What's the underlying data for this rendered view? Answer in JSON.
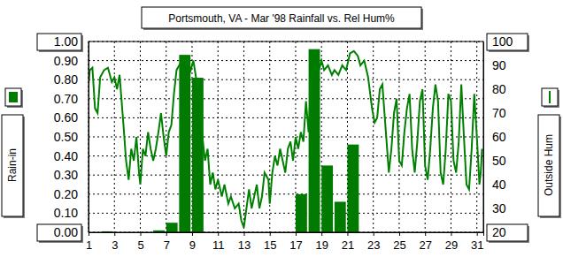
{
  "chart_data": {
    "type": "bar",
    "title": "Portsmouth, VA - Mar '98 Rainfall vs. Rel Hum%",
    "xlim": [
      1,
      31.5
    ],
    "xticks": [
      1,
      3,
      5,
      7,
      9,
      11,
      13,
      15,
      17,
      19,
      21,
      23,
      25,
      27,
      29,
      31
    ],
    "ylim": [
      0,
      1
    ],
    "yticks": [
      {
        "value": 0,
        "label": "0.00"
      },
      {
        "value": 0.1,
        "label": "0.10"
      },
      {
        "value": 0.2,
        "label": "0.20"
      },
      {
        "value": 0.3,
        "label": "0.30"
      },
      {
        "value": 0.4,
        "label": "0.40"
      },
      {
        "value": 0.5,
        "label": "0.50"
      },
      {
        "value": 0.6,
        "label": "0.60"
      },
      {
        "value": 0.7,
        "label": "0.70"
      },
      {
        "value": 0.8,
        "label": "0.80"
      },
      {
        "value": 0.9,
        "label": "0.90"
      },
      {
        "value": 1,
        "label": "1.00"
      }
    ],
    "y2lim": [
      20,
      100
    ],
    "y2ticks": [
      20,
      30,
      40,
      50,
      60,
      70,
      80,
      90,
      100
    ],
    "grid": true,
    "series": [
      {
        "name": "Rain-in",
        "type": "bar",
        "color": "#007a00",
        "x": [
          1,
          2,
          3,
          4,
          5,
          6,
          7,
          8,
          9,
          10,
          11,
          12,
          13,
          14,
          15,
          16,
          17,
          18,
          19,
          20,
          21,
          22,
          23,
          24,
          25,
          26,
          27,
          28,
          29,
          30,
          31
        ],
        "values": [
          0,
          0.005,
          0,
          0,
          0,
          0.01,
          0.05,
          0.93,
          0.81,
          0,
          0,
          0,
          0,
          0,
          0,
          0,
          0.2,
          0.96,
          0.35,
          0.16,
          0.46,
          0,
          0,
          0,
          0,
          0,
          0,
          0,
          0,
          0,
          0
        ]
      },
      {
        "name": "Outside Hum",
        "type": "line",
        "axis": "y2",
        "color": "#008000",
        "x": [
          1.0,
          1.1,
          1.3,
          1.5,
          1.7,
          1.9,
          2.2,
          2.5,
          2.8,
          3.0,
          3.2,
          3.4,
          3.7,
          3.9,
          4.1,
          4.3,
          4.5,
          4.7,
          4.9,
          5.0,
          5.2,
          5.4,
          5.6,
          5.8,
          6.0,
          6.2,
          6.4,
          6.6,
          6.8,
          7.0,
          7.2,
          7.4,
          7.6,
          7.8,
          8.0,
          8.3,
          8.6,
          8.9,
          9.1,
          9.3,
          9.6,
          9.8,
          10.0,
          10.2,
          10.4,
          10.6,
          10.8,
          11.0,
          11.3,
          11.5,
          11.8,
          12.0,
          12.3,
          12.6,
          12.8,
          13.0,
          13.2,
          13.4,
          13.6,
          13.8,
          14.0,
          14.2,
          14.4,
          14.6,
          14.9,
          15.0,
          15.2,
          15.4,
          15.6,
          15.8,
          16.0,
          16.2,
          16.4,
          16.6,
          16.8,
          17.0,
          17.2,
          17.4,
          17.6,
          17.8,
          18.0,
          18.2,
          18.5,
          18.8,
          19.0,
          19.2,
          19.5,
          19.8,
          20.0,
          20.3,
          20.6,
          20.9,
          21.2,
          21.5,
          21.8,
          22.0,
          22.3,
          22.6,
          22.9,
          23.1,
          23.3,
          23.5,
          23.7,
          24.0,
          24.2,
          24.4,
          24.6,
          24.8,
          25.0,
          25.2,
          25.4,
          25.6,
          25.8,
          26.0,
          26.2,
          26.4,
          26.6,
          26.8,
          27.0,
          27.2,
          27.4,
          27.6,
          27.8,
          28.0,
          28.2,
          28.4,
          28.6,
          28.8,
          29.0,
          29.2,
          29.4,
          29.6,
          29.8,
          30.0,
          30.2,
          30.4,
          30.6,
          30.8,
          31.0,
          31.2,
          31.3,
          31.4
        ],
        "values": [
          82,
          88,
          89,
          72,
          70,
          85,
          88,
          89,
          83,
          85,
          80,
          86,
          65,
          50,
          42,
          55,
          50,
          60,
          45,
          40,
          55,
          52,
          62,
          55,
          50,
          55,
          62,
          70,
          60,
          52,
          62,
          65,
          78,
          88,
          90,
          92,
          93,
          88,
          92,
          85,
          75,
          60,
          50,
          55,
          40,
          45,
          38,
          42,
          35,
          40,
          32,
          35,
          30,
          32,
          25,
          22,
          30,
          38,
          30,
          35,
          40,
          30,
          35,
          45,
          42,
          32,
          45,
          52,
          48,
          55,
          50,
          45,
          55,
          58,
          50,
          60,
          55,
          62,
          58,
          75,
          62,
          85,
          90,
          88,
          92,
          88,
          90,
          86,
          88,
          86,
          90,
          88,
          95,
          96,
          94,
          90,
          92,
          85,
          72,
          66,
          68,
          80,
          82,
          60,
          45,
          55,
          70,
          76,
          50,
          48,
          62,
          72,
          78,
          55,
          45,
          58,
          75,
          80,
          48,
          42,
          55,
          72,
          82,
          75,
          45,
          40,
          55,
          78,
          75,
          50,
          45,
          58,
          82,
          60,
          40,
          38,
          55,
          78,
          60,
          40,
          45,
          55
        ]
      }
    ]
  }
}
